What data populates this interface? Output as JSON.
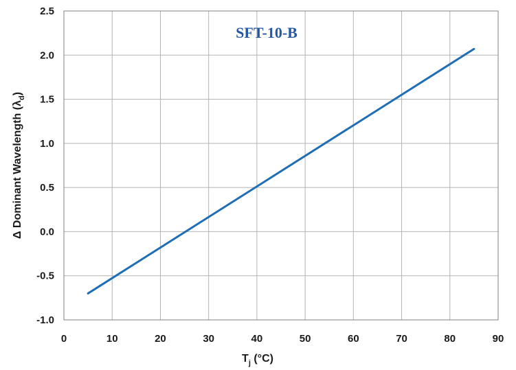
{
  "chart_data": {
    "type": "line",
    "title": "",
    "annotation": "SFT-10-B",
    "xlabel": {
      "main": "T",
      "sub": "j",
      "rest": " (°C)"
    },
    "ylabel": {
      "main": "Δ Dominant Wavelength (λ",
      "sub": "d",
      "rest": ")"
    },
    "xlim": [
      0,
      90
    ],
    "ylim": [
      -1.0,
      2.5
    ],
    "x_ticks": [
      0,
      10,
      20,
      30,
      40,
      50,
      60,
      70,
      80,
      90
    ],
    "x_tick_labels": [
      "0",
      "10",
      "20",
      "30",
      "40",
      "50",
      "60",
      "70",
      "80",
      "90"
    ],
    "y_ticks": [
      -1.0,
      -0.5,
      0.0,
      0.5,
      1.0,
      1.5,
      2.0,
      2.5
    ],
    "y_tick_labels": [
      "-1.0",
      "-0.5",
      "0.0",
      "0.5",
      "1.0",
      "1.5",
      "2.0",
      "2.5"
    ],
    "grid": true,
    "series": [
      {
        "x": [
          5,
          85
        ],
        "y": [
          -0.7,
          2.07
        ]
      }
    ],
    "colors": {
      "line": "#1f6db5",
      "grid": "#b3b3b3",
      "annotation": "#2458a5",
      "axis": "#808080"
    }
  }
}
